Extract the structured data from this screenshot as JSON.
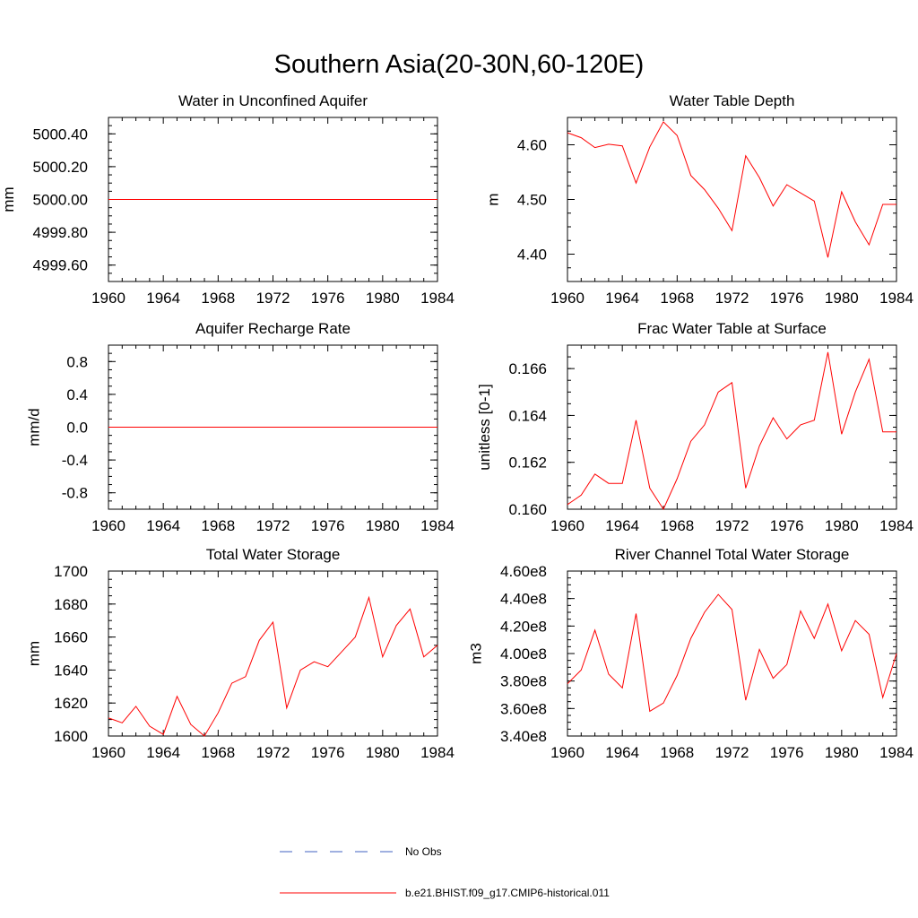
{
  "figure": {
    "title": "Southern Asia(20-30N,60-120E)",
    "background": "#ffffff",
    "line_color": "#ff0000",
    "obs_color": "#4060c0"
  },
  "legend": {
    "entries": [
      {
        "label": "No Obs",
        "style": "dashed",
        "color": "#4060c0"
      },
      {
        "label": "b.e21.BHIST.f09_g17.CMIP6-historical.011",
        "style": "solid",
        "color": "#ff0000"
      }
    ]
  },
  "chart_data": [
    {
      "type": "line",
      "title": "Water in Unconfined Aquifer",
      "ylabel": "mm",
      "xlabel": "",
      "xlim": [
        1960,
        1984
      ],
      "ylim": [
        4999.5,
        5000.5
      ],
      "xticks": [
        "1960",
        "1964",
        "1968",
        "1972",
        "1976",
        "1980",
        "1984"
      ],
      "yticks": [
        "4999.60",
        "4999.80",
        "5000.00",
        "5000.20",
        "5000.40"
      ],
      "ytick_values": [
        4999.6,
        4999.8,
        5000.0,
        5000.2,
        5000.4
      ],
      "series": [
        {
          "name": "b.e21.BHIST.f09_g17.CMIP6-historical.011",
          "x": [
            1960,
            1984
          ],
          "values": [
            5000.0,
            5000.0
          ]
        }
      ]
    },
    {
      "type": "line",
      "title": "Water Table Depth",
      "ylabel": "m",
      "xlabel": "",
      "xlim": [
        1960,
        1984
      ],
      "ylim": [
        4.35,
        4.65
      ],
      "xticks": [
        "1960",
        "1964",
        "1968",
        "1972",
        "1976",
        "1980",
        "1984"
      ],
      "yticks": [
        "4.40",
        "4.50",
        "4.60"
      ],
      "ytick_values": [
        4.4,
        4.5,
        4.6
      ],
      "series": [
        {
          "name": "b.e21.BHIST.f09_g17.CMIP6-historical.011",
          "x": [
            1960,
            1961,
            1962,
            1963,
            1964,
            1965,
            1966,
            1967,
            1968,
            1969,
            1970,
            1971,
            1972,
            1973,
            1974,
            1975,
            1976,
            1977,
            1978,
            1979,
            1980,
            1981,
            1982,
            1983,
            1984
          ],
          "values": [
            4.622,
            4.613,
            4.595,
            4.601,
            4.598,
            4.53,
            4.596,
            4.642,
            4.617,
            4.544,
            4.518,
            4.484,
            4.443,
            4.58,
            4.54,
            4.488,
            4.527,
            4.512,
            4.497,
            4.394,
            4.514,
            4.459,
            4.417,
            4.491,
            4.491
          ]
        }
      ]
    },
    {
      "type": "line",
      "title": "Aquifer Recharge Rate",
      "ylabel": "mm/d",
      "xlabel": "",
      "xlim": [
        1960,
        1984
      ],
      "ylim": [
        -1.0,
        1.0
      ],
      "xticks": [
        "1960",
        "1964",
        "1968",
        "1972",
        "1976",
        "1980",
        "1984"
      ],
      "yticks": [
        "-0.8",
        "-0.4",
        "0.0",
        "0.4",
        "0.8"
      ],
      "ytick_values": [
        -0.8,
        -0.4,
        0.0,
        0.4,
        0.8
      ],
      "series": [
        {
          "name": "b.e21.BHIST.f09_g17.CMIP6-historical.011",
          "x": [
            1960,
            1984
          ],
          "values": [
            0.0,
            0.0
          ]
        }
      ]
    },
    {
      "type": "line",
      "title": "Frac Water Table at Surface",
      "ylabel": "unitless [0-1]",
      "xlabel": "",
      "xlim": [
        1960,
        1984
      ],
      "ylim": [
        0.16,
        0.167
      ],
      "xticks": [
        "1960",
        "1964",
        "1968",
        "1972",
        "1976",
        "1980",
        "1984"
      ],
      "yticks": [
        "0.160",
        "0.162",
        "0.164",
        "0.166"
      ],
      "ytick_values": [
        0.16,
        0.162,
        0.164,
        0.166
      ],
      "series": [
        {
          "name": "b.e21.BHIST.f09_g17.CMIP6-historical.011",
          "x": [
            1960,
            1961,
            1962,
            1963,
            1964,
            1965,
            1966,
            1967,
            1968,
            1969,
            1970,
            1971,
            1972,
            1973,
            1974,
            1975,
            1976,
            1977,
            1978,
            1979,
            1980,
            1981,
            1982,
            1983,
            1984
          ],
          "values": [
            0.1602,
            0.1606,
            0.1615,
            0.1611,
            0.1611,
            0.1638,
            0.1609,
            0.16,
            0.1613,
            0.1629,
            0.1636,
            0.165,
            0.1654,
            0.1609,
            0.1627,
            0.1639,
            0.163,
            0.1636,
            0.1638,
            0.1667,
            0.1632,
            0.165,
            0.1664,
            0.1633,
            0.1633
          ]
        }
      ]
    },
    {
      "type": "line",
      "title": "Total Water Storage",
      "ylabel": "mm",
      "xlabel": "",
      "xlim": [
        1960,
        1984
      ],
      "ylim": [
        1600,
        1700
      ],
      "xticks": [
        "1960",
        "1964",
        "1968",
        "1972",
        "1976",
        "1980",
        "1984"
      ],
      "yticks": [
        "1600",
        "1620",
        "1640",
        "1660",
        "1680",
        "1700"
      ],
      "ytick_values": [
        1600,
        1620,
        1640,
        1660,
        1680,
        1700
      ],
      "series": [
        {
          "name": "b.e21.BHIST.f09_g17.CMIP6-historical.011",
          "x": [
            1960,
            1961,
            1962,
            1963,
            1964,
            1965,
            1966,
            1967,
            1968,
            1969,
            1970,
            1971,
            1972,
            1973,
            1974,
            1975,
            1976,
            1977,
            1978,
            1979,
            1980,
            1981,
            1982,
            1983,
            1984
          ],
          "values": [
            1611,
            1608,
            1618,
            1606,
            1601,
            1624,
            1607,
            1600,
            1614,
            1632,
            1636,
            1658,
            1669,
            1617,
            1640,
            1645,
            1642,
            1651,
            1660,
            1684,
            1648,
            1667,
            1677,
            1648,
            1655
          ]
        }
      ]
    },
    {
      "type": "line",
      "title": "River Channel Total Water Storage",
      "ylabel": "m3",
      "xlabel": "",
      "xlim": [
        1960,
        1984
      ],
      "ylim": [
        340000000,
        460000000
      ],
      "xticks": [
        "1960",
        "1964",
        "1968",
        "1972",
        "1976",
        "1980",
        "1984"
      ],
      "yticks": [
        "3.40e8",
        "3.60e8",
        "3.80e8",
        "4.00e8",
        "4.20e8",
        "4.40e8",
        "4.60e8"
      ],
      "ytick_values": [
        340000000,
        360000000,
        380000000,
        400000000,
        420000000,
        440000000,
        460000000
      ],
      "series": [
        {
          "name": "b.e21.BHIST.f09_g17.CMIP6-historical.011",
          "x": [
            1960,
            1961,
            1962,
            1963,
            1964,
            1965,
            1966,
            1967,
            1968,
            1969,
            1970,
            1971,
            1972,
            1973,
            1974,
            1975,
            1976,
            1977,
            1978,
            1979,
            1980,
            1981,
            1982,
            1983,
            1984
          ],
          "values": [
            378000000,
            388000000,
            417000000,
            385000000,
            375000000,
            429000000,
            358000000,
            364000000,
            384000000,
            411000000,
            430000000,
            443000000,
            432000000,
            366000000,
            403000000,
            382000000,
            392000000,
            431000000,
            411000000,
            436000000,
            402000000,
            424000000,
            414000000,
            368000000,
            400000000
          ]
        }
      ]
    }
  ]
}
